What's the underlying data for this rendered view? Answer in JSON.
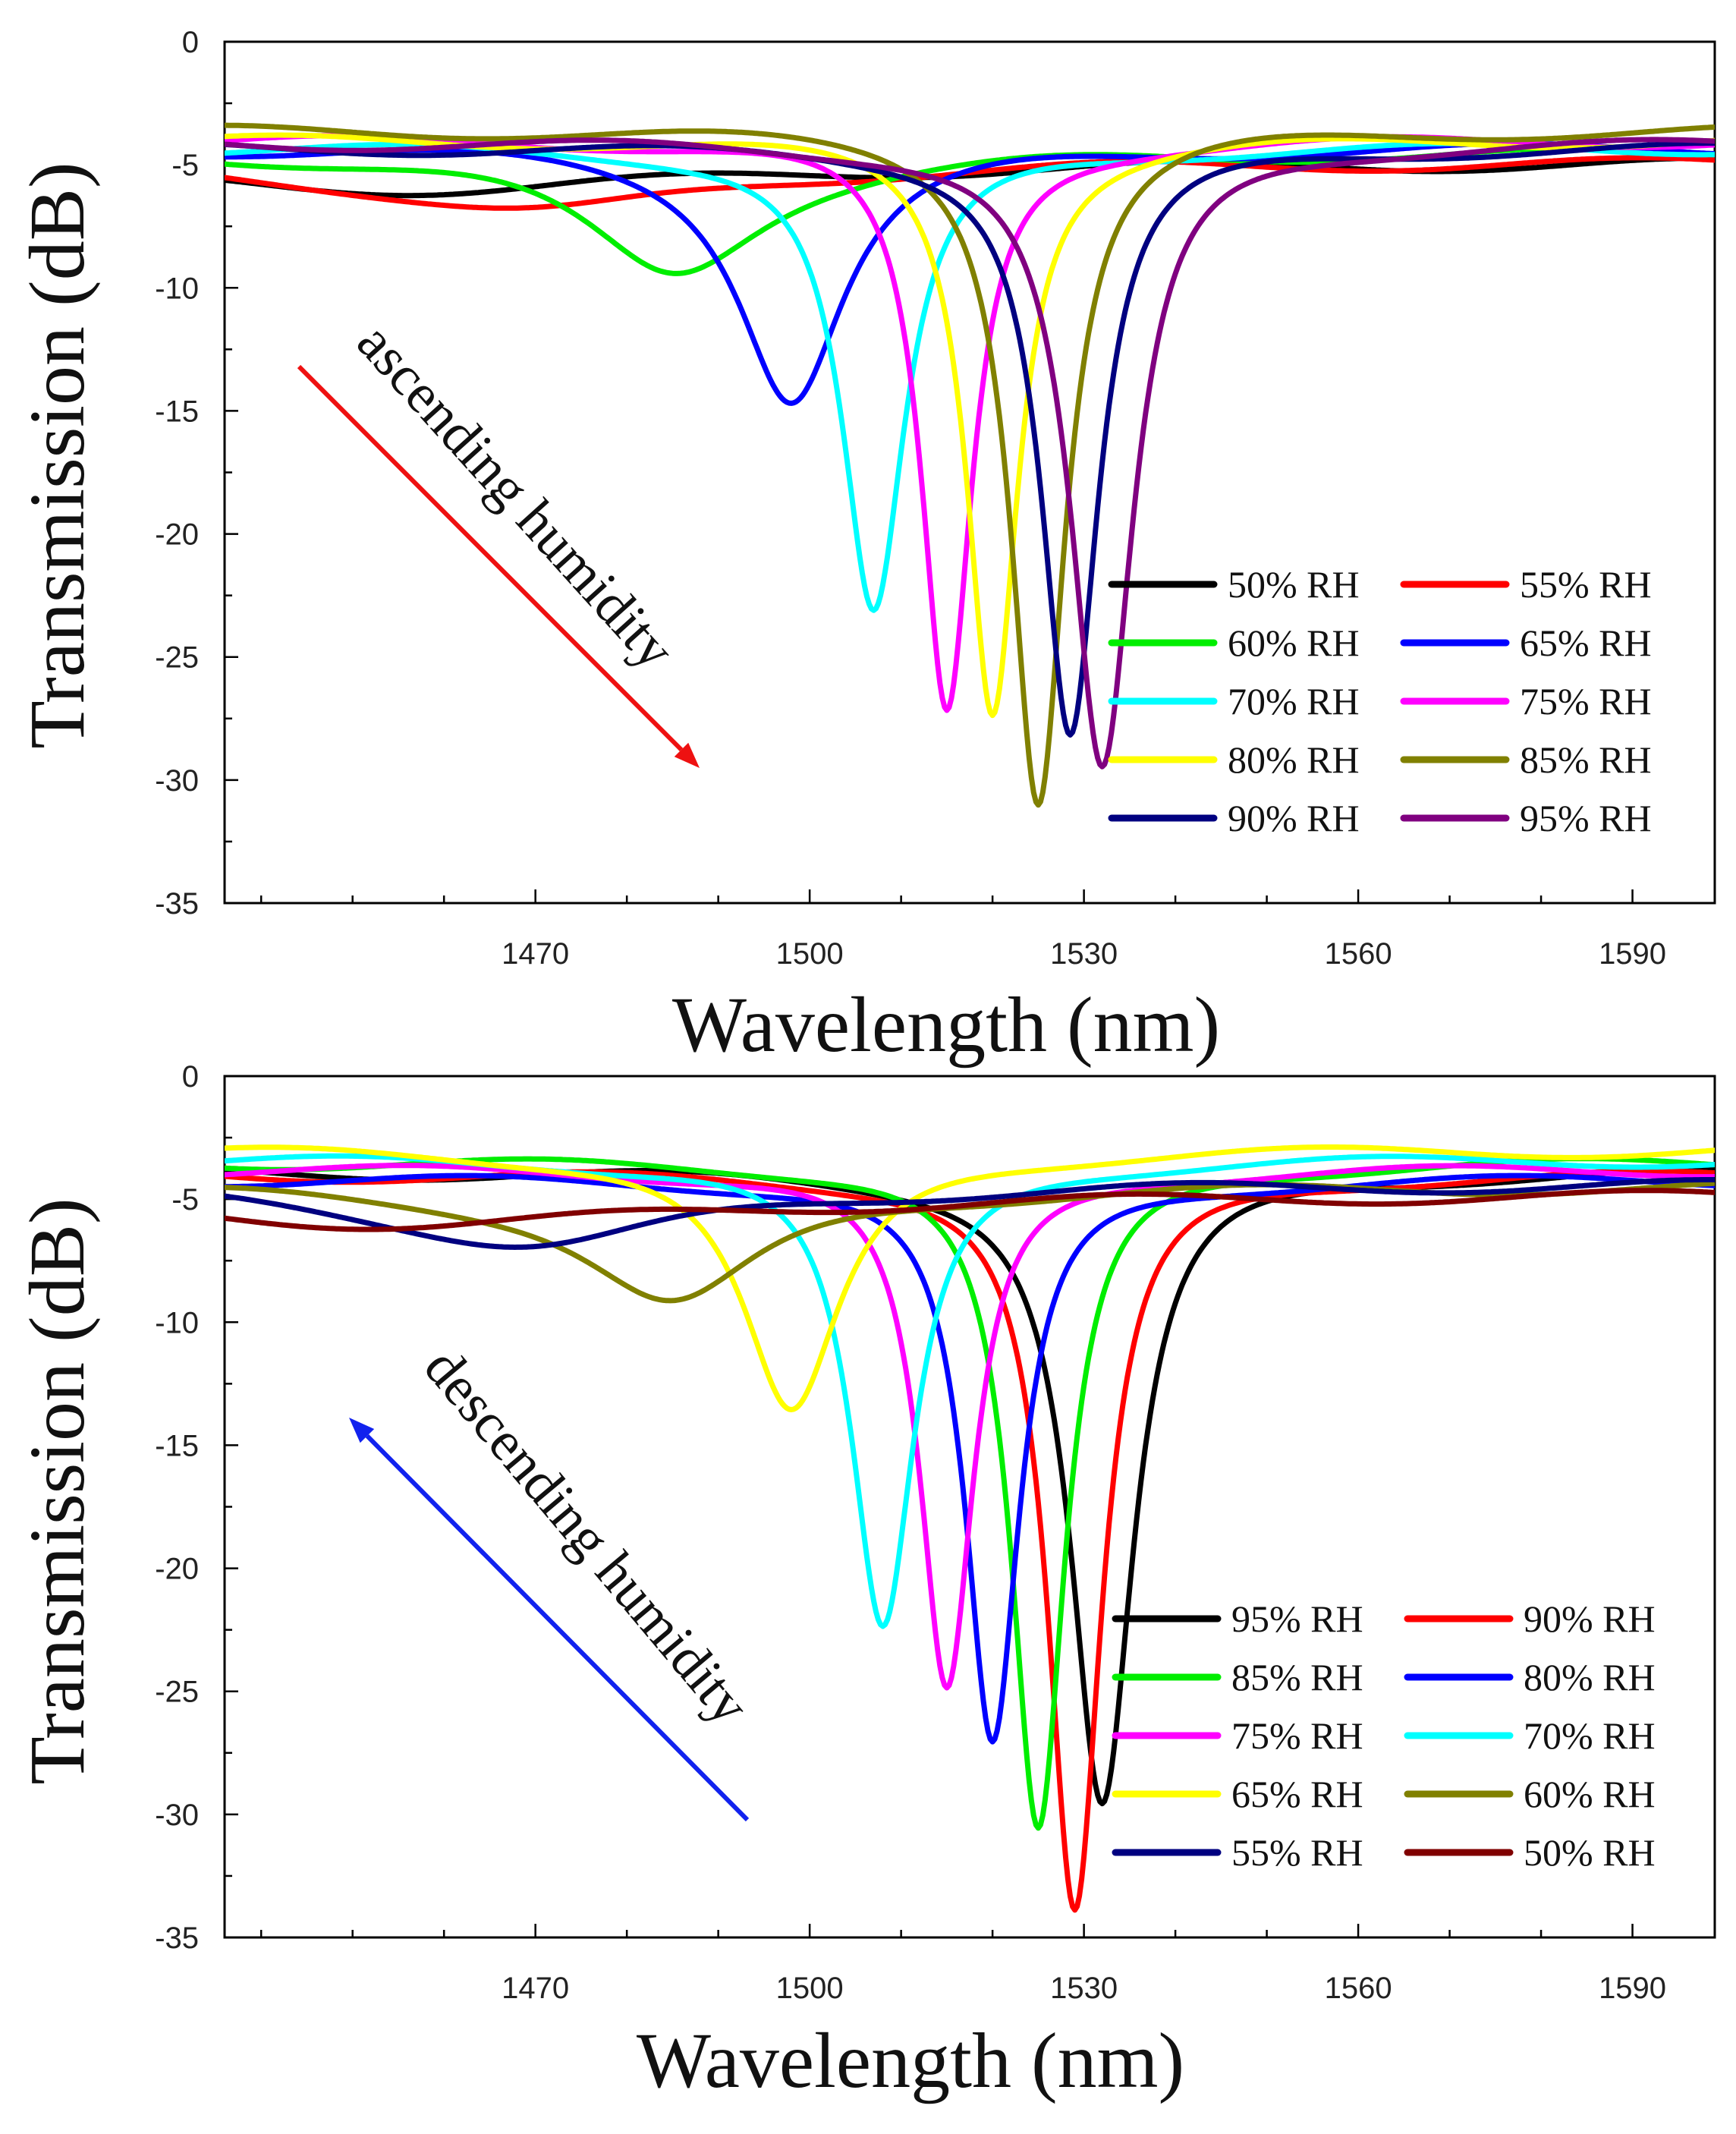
{
  "chart_data": [
    {
      "type": "line",
      "panel": "top",
      "xlabel": "Wavelength (nm)",
      "ylabel": "Transmission (dB)",
      "xlim": [
        1436,
        1599
      ],
      "ylim": [
        -35,
        0
      ],
      "xticks": [
        1470,
        1500,
        1530,
        1560,
        1590
      ],
      "yticks": [
        0,
        -5,
        -10,
        -15,
        -20,
        -25,
        -30,
        -35
      ],
      "annotation": {
        "text": "ascending humidity",
        "color": "#ee1111",
        "direction": "down-right"
      },
      "legend_position": "bottom-right",
      "series": [
        {
          "name": "50% RH",
          "color": "#000000",
          "baseline": -4.9,
          "dip_center": 1456,
          "dip_depth": -6.0,
          "dip_width": 40
        },
        {
          "name": "55% RH",
          "color": "#ff0000",
          "baseline": -4.9,
          "dip_center": 1470,
          "dip_depth": -6.9,
          "dip_width": 22
        },
        {
          "name": "60% RH",
          "color": "#00ee00",
          "baseline": -4.5,
          "dip_center": 1485,
          "dip_depth": -9.4,
          "dip_width": 12
        },
        {
          "name": "65% RH",
          "color": "#0000ff",
          "baseline": -4.3,
          "dip_center": 1498,
          "dip_depth": -14.5,
          "dip_width": 7
        },
        {
          "name": "70% RH",
          "color": "#00ffff",
          "baseline": -4.3,
          "dip_center": 1507,
          "dip_depth": -23.3,
          "dip_width": 4.2
        },
        {
          "name": "75% RH",
          "color": "#ff00ff",
          "baseline": -4.0,
          "dip_center": 1515,
          "dip_depth": -27.3,
          "dip_width": 3.4
        },
        {
          "name": "80% RH",
          "color": "#ffff00",
          "baseline": -4.0,
          "dip_center": 1520,
          "dip_depth": -27.2,
          "dip_width": 3.4
        },
        {
          "name": "85% RH",
          "color": "#808000",
          "baseline": -3.6,
          "dip_center": 1525,
          "dip_depth": -30.8,
          "dip_width": 3.6
        },
        {
          "name": "90% RH",
          "color": "#000080",
          "baseline": -4.3,
          "dip_center": 1528.5,
          "dip_depth": -28.2,
          "dip_width": 3.8
        },
        {
          "name": "95% RH",
          "color": "#800080",
          "baseline": -4.1,
          "dip_center": 1532,
          "dip_depth": -29.7,
          "dip_width": 4.2
        }
      ]
    },
    {
      "type": "line",
      "panel": "bottom",
      "xlabel": "Wavelength (nm)",
      "ylabel": "Transmission (dB)",
      "xlim": [
        1436,
        1599
      ],
      "ylim": [
        -35,
        0
      ],
      "xticks": [
        1470,
        1500,
        1530,
        1560,
        1590
      ],
      "yticks": [
        0,
        -5,
        -10,
        -15,
        -20,
        -25,
        -30,
        -35
      ],
      "annotation": {
        "text": "descending humidity",
        "color": "#1122ee",
        "direction": "up-left"
      },
      "legend_position": "bottom-right",
      "series": [
        {
          "name": "95% RH",
          "color": "#000000",
          "baseline": -3.9,
          "dip_center": 1532,
          "dip_depth": -29.7,
          "dip_width": 4.2
        },
        {
          "name": "90% RH",
          "color": "#ff0000",
          "baseline": -4.0,
          "dip_center": 1529,
          "dip_depth": -34.1,
          "dip_width": 3.6
        },
        {
          "name": "85% RH",
          "color": "#00ee00",
          "baseline": -3.5,
          "dip_center": 1525,
          "dip_depth": -30.8,
          "dip_width": 3.6
        },
        {
          "name": "80% RH",
          "color": "#0000ff",
          "baseline": -4.2,
          "dip_center": 1520,
          "dip_depth": -27.3,
          "dip_width": 3.6
        },
        {
          "name": "75% RH",
          "color": "#ff00ff",
          "baseline": -3.8,
          "dip_center": 1515,
          "dip_depth": -25.1,
          "dip_width": 3.6
        },
        {
          "name": "70% RH",
          "color": "#00ffff",
          "baseline": -3.4,
          "dip_center": 1508,
          "dip_depth": -22.6,
          "dip_width": 4.2
        },
        {
          "name": "65% RH",
          "color": "#ffff00",
          "baseline": -3.0,
          "dip_center": 1498,
          "dip_depth": -13.8,
          "dip_width": 6.5
        },
        {
          "name": "60% RH",
          "color": "#808000",
          "baseline": -4.5,
          "dip_center": 1485,
          "dip_depth": -9.3,
          "dip_width": 12
        },
        {
          "name": "55% RH",
          "color": "#000080",
          "baseline": -4.4,
          "dip_center": 1470,
          "dip_depth": -6.9,
          "dip_width": 20
        },
        {
          "name": "50% RH",
          "color": "#800000",
          "baseline": -4.8,
          "dip_center": 1456,
          "dip_depth": -6.0,
          "dip_width": 40
        }
      ]
    }
  ]
}
